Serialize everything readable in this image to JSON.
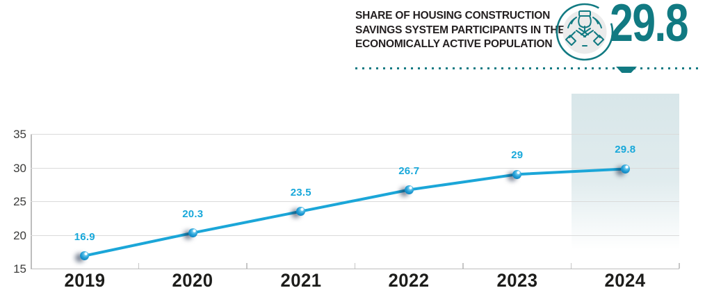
{
  "header": {
    "title_lines": [
      "SHARE OF HOUSING CONSTRUCTION",
      "SAVINGS SYSTEM PARTICIPANTS IN THE",
      "ECONOMICALLY ACTIVE POPULATION"
    ],
    "stat": {
      "value": "29.8",
      "icon": "hands-savings-icon"
    }
  },
  "colors": {
    "teal": "#117a82",
    "line_cyan": "#1ba6d8",
    "point_label_cyan": "#18a8da",
    "title_dark": "#231f20",
    "year_label_dark": "#1d1d1b",
    "ytick_gray": "#3c3c3b",
    "gridline_gray": "#dadada",
    "highlight_band": "#d6e5e8"
  },
  "chart_data": {
    "type": "line",
    "title": "SHARE OF HOUSING CONSTRUCTION SAVINGS SYSTEM PARTICIPANTS IN THE ECONOMICALLY ACTIVE POPULATION",
    "categories": [
      "2019",
      "2020",
      "2021",
      "2022",
      "2023",
      "2024"
    ],
    "values": [
      16.9,
      20.3,
      23.5,
      26.7,
      29,
      29.8
    ],
    "point_labels": [
      "16.9",
      "20.3",
      "23.5",
      "26.7",
      "29",
      "29.8"
    ],
    "ylim": [
      15,
      35
    ],
    "yticks": [
      15,
      20,
      25,
      30,
      35
    ],
    "grid": true,
    "legend_position": "none",
    "highlighted_category": "2024",
    "xlabel": "",
    "ylabel": ""
  }
}
